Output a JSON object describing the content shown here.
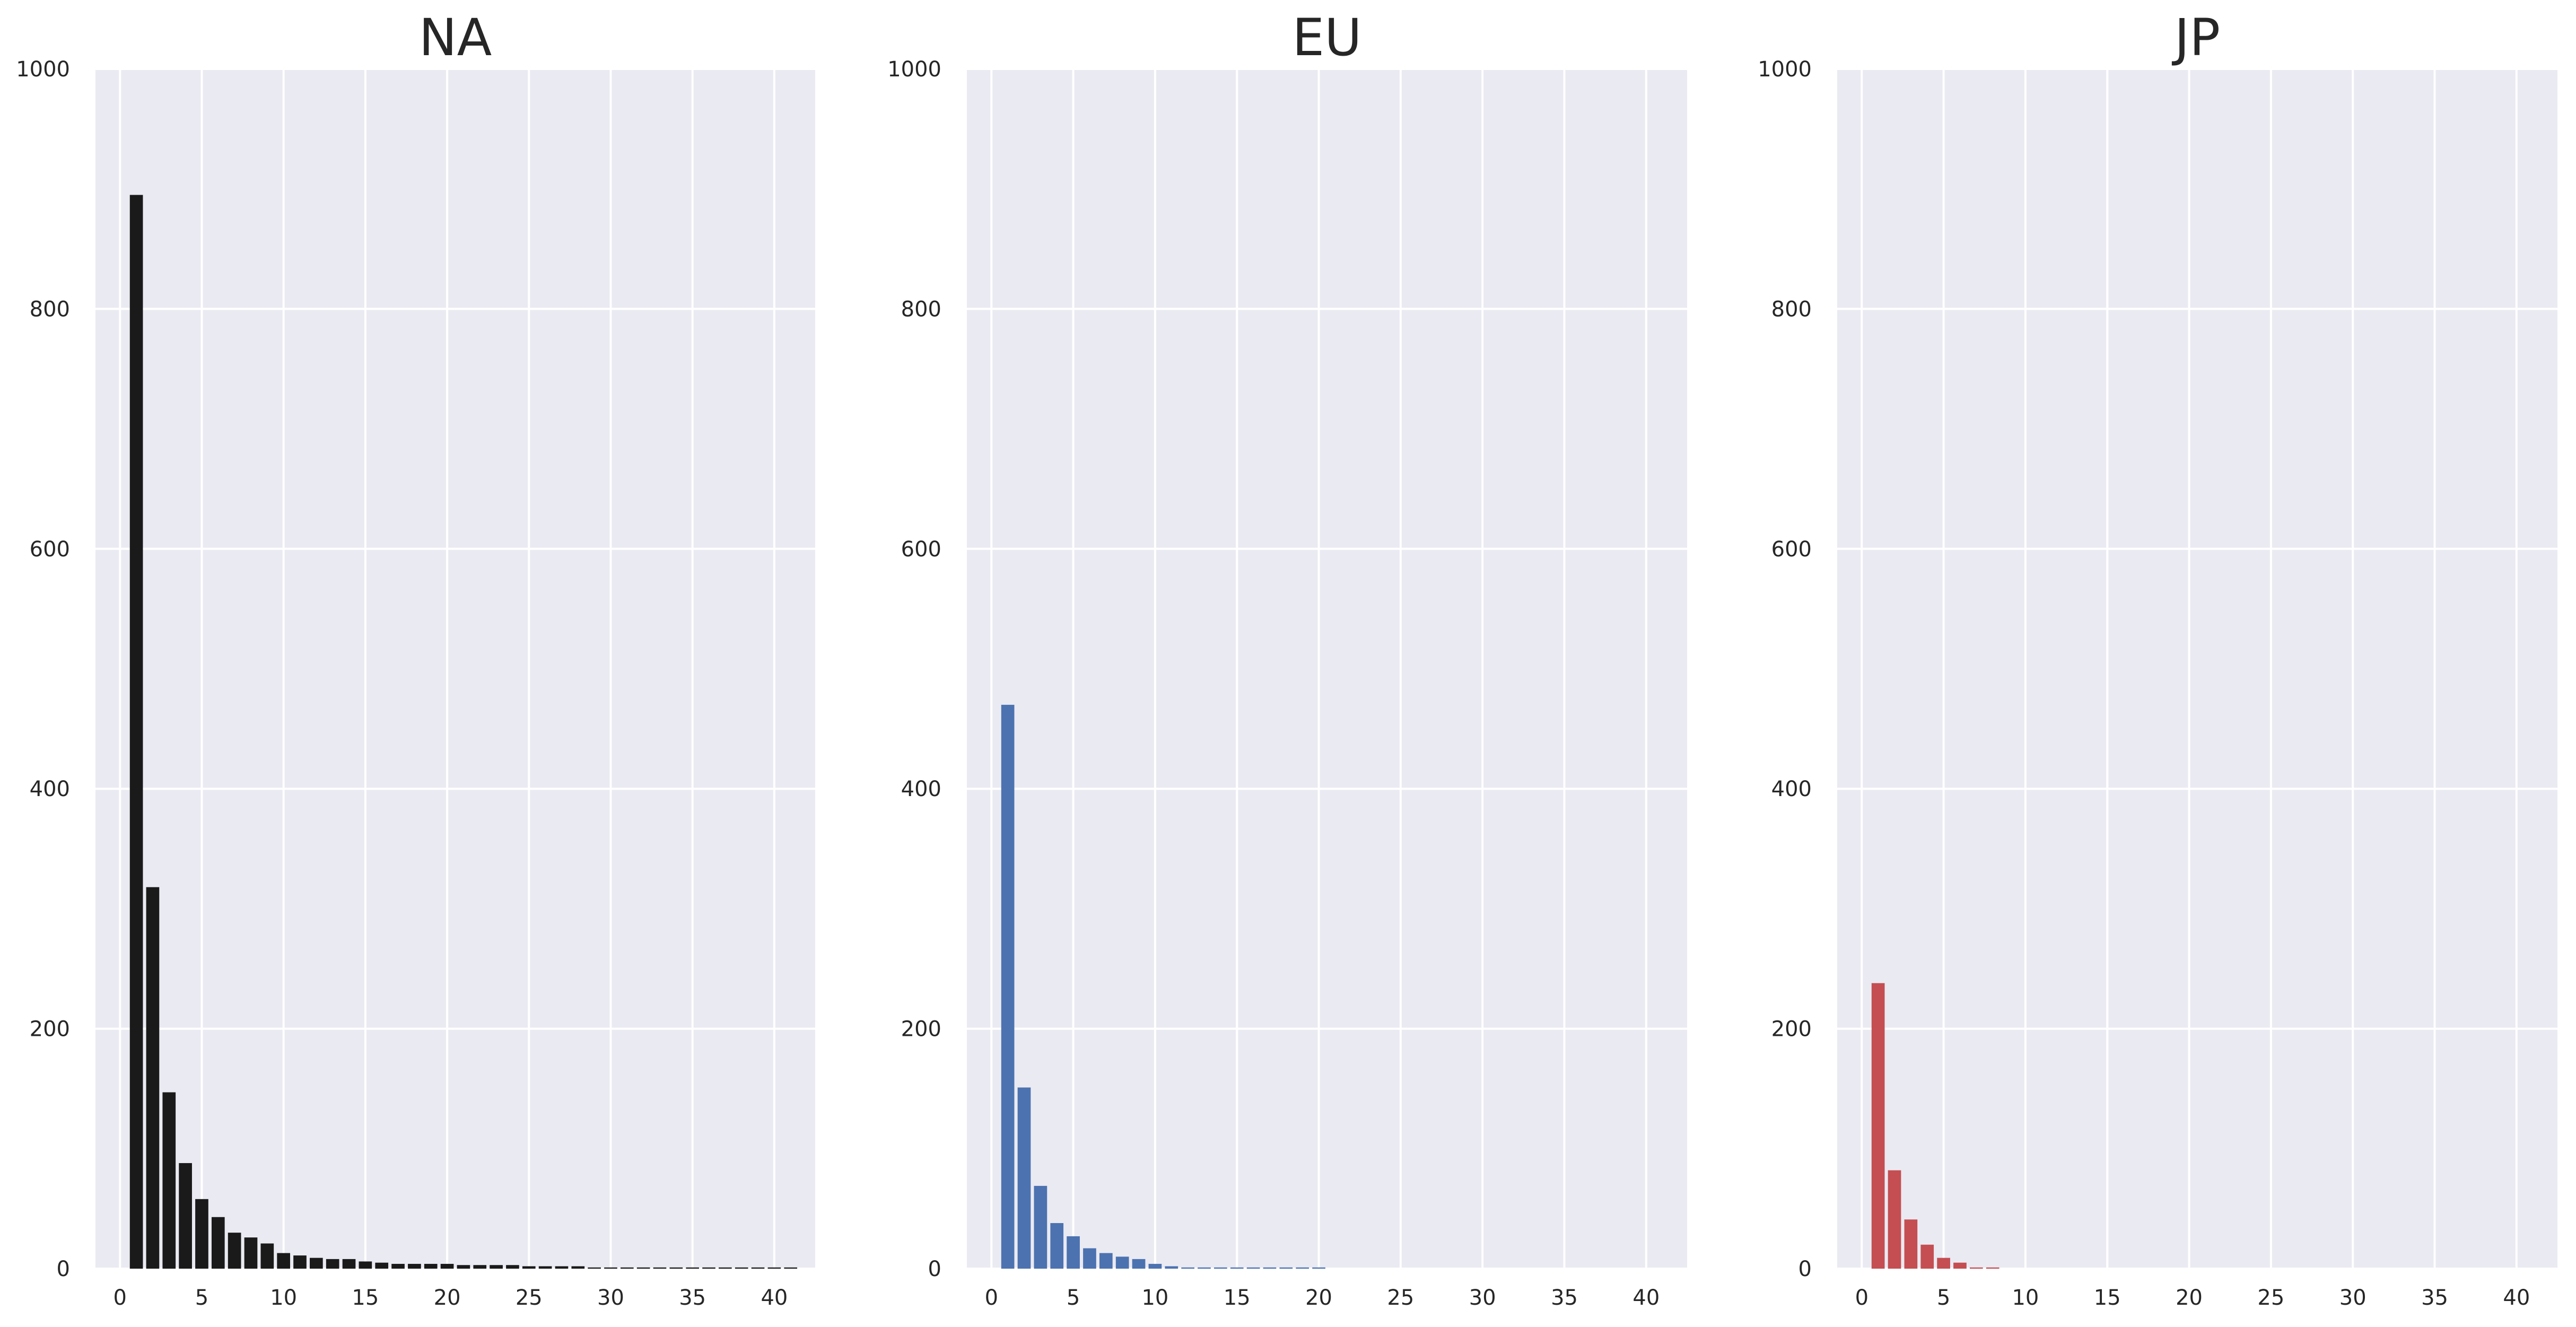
{
  "chart_data": [
    {
      "type": "bar",
      "title": "NA",
      "color": "#1a1a1a",
      "xlim": [
        -1.5,
        42.5
      ],
      "ylim": [
        0,
        1000
      ],
      "xticks": [
        0,
        5,
        10,
        15,
        20,
        25,
        30,
        35,
        40
      ],
      "yticks": [
        0,
        200,
        400,
        600,
        800,
        1000
      ],
      "grid": true,
      "x": [
        1,
        2,
        3,
        4,
        5,
        6,
        7,
        8,
        9,
        10,
        11,
        12,
        13,
        14,
        15,
        16,
        17,
        18,
        19,
        20,
        21,
        22,
        23,
        24,
        25,
        26,
        27,
        28,
        29,
        30,
        31,
        32,
        33,
        34,
        35,
        36,
        37,
        38,
        39,
        40,
        41
      ],
      "values": [
        895,
        318,
        147,
        88,
        58,
        43,
        30,
        26,
        21,
        13,
        11,
        9,
        8,
        8,
        6,
        5,
        4,
        4,
        4,
        4,
        3,
        3,
        3,
        3,
        2,
        2,
        2,
        2,
        1,
        1,
        1,
        1,
        1,
        1,
        1,
        1,
        1,
        1,
        1,
        1,
        1
      ]
    },
    {
      "type": "bar",
      "title": "EU",
      "color": "#4c72b0",
      "xlim": [
        -1.5,
        42.5
      ],
      "ylim": [
        0,
        1000
      ],
      "xticks": [
        0,
        5,
        10,
        15,
        20,
        25,
        30,
        35,
        40
      ],
      "yticks": [
        0,
        200,
        400,
        600,
        800,
        1000
      ],
      "grid": true,
      "x": [
        1,
        2,
        3,
        4,
        5,
        6,
        7,
        8,
        9,
        10,
        11,
        12,
        13,
        14,
        15,
        16,
        17,
        18,
        19,
        20
      ],
      "values": [
        470,
        151,
        69,
        38,
        27,
        17,
        13,
        10,
        8,
        4,
        2,
        1,
        1,
        1,
        1,
        1,
        1,
        1,
        1,
        1
      ]
    },
    {
      "type": "bar",
      "title": "JP",
      "color": "#c44e52",
      "xlim": [
        -1.5,
        42.5
      ],
      "ylim": [
        0,
        1000
      ],
      "xticks": [
        0,
        5,
        10,
        15,
        20,
        25,
        30,
        35,
        40
      ],
      "yticks": [
        0,
        200,
        400,
        600,
        800,
        1000
      ],
      "grid": true,
      "x": [
        1,
        2,
        3,
        4,
        5,
        6,
        7,
        8
      ],
      "values": [
        238,
        82,
        41,
        20,
        9,
        5,
        1,
        1
      ]
    }
  ]
}
